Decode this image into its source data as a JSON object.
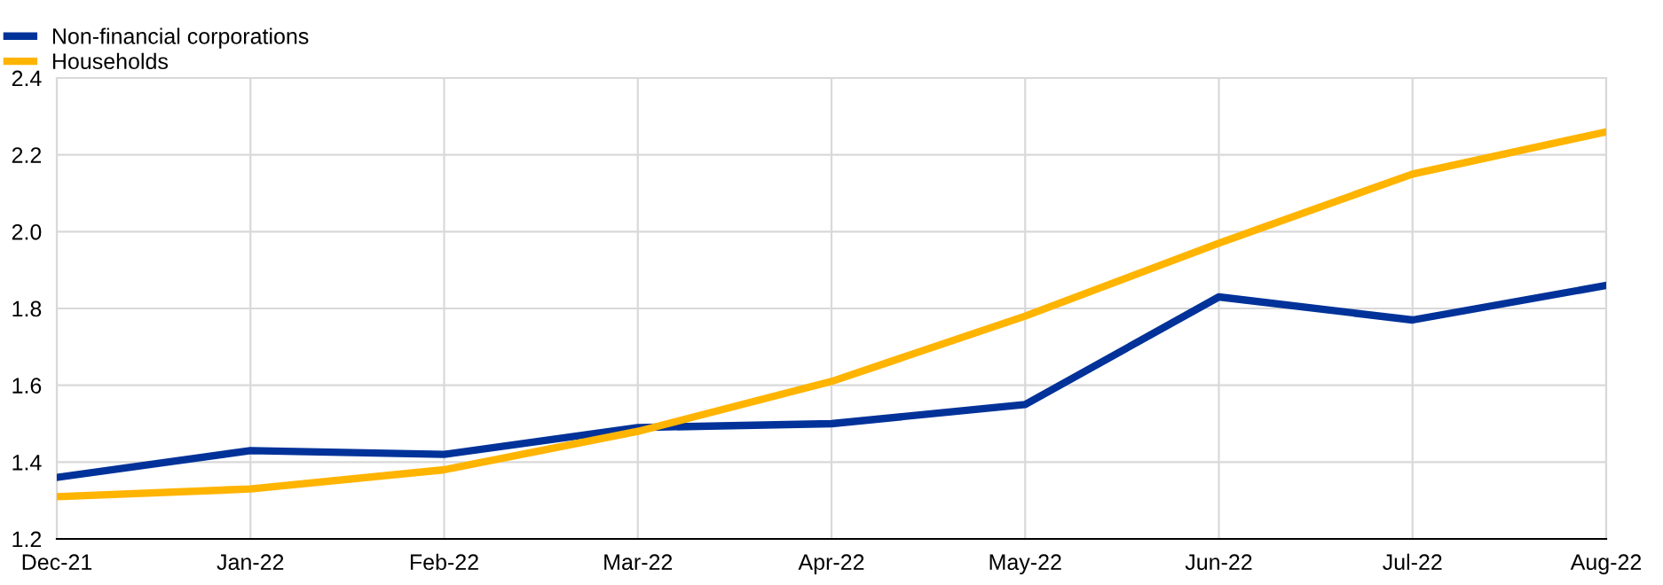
{
  "chart_data": {
    "type": "line",
    "categories": [
      "Dec-21",
      "Jan-22",
      "Feb-22",
      "Mar-22",
      "Apr-22",
      "May-22",
      "Jun-22",
      "Jul-22",
      "Aug-22"
    ],
    "series": [
      {
        "name": "Non-financial corporations",
        "color": "#003299",
        "values": [
          1.36,
          1.43,
          1.42,
          1.49,
          1.5,
          1.55,
          1.83,
          1.77,
          1.86
        ]
      },
      {
        "name": "Households",
        "color": "#ffb400",
        "values": [
          1.31,
          1.33,
          1.38,
          1.48,
          1.61,
          1.78,
          1.97,
          2.15,
          2.26
        ]
      }
    ],
    "ylim": [
      1.2,
      2.4
    ],
    "yticks": [
      1.2,
      1.4,
      1.6,
      1.8,
      {
        "value": 2.0,
        "label": "2.0"
      },
      2.2,
      2.4
    ],
    "grid": true,
    "legend": "top left",
    "marker": "none",
    "line_style": "solid"
  }
}
